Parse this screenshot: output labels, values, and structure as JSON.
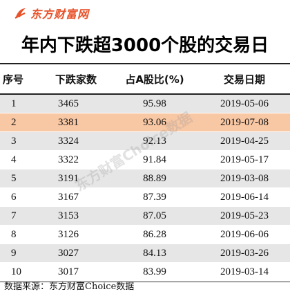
{
  "logo": {
    "text": "东方财富网",
    "color": "#e8522a"
  },
  "title": "年内下跌超3000个股的交易日",
  "table": {
    "headers": [
      "序号",
      "下跌家数",
      "占A股比(%)",
      "交易日期"
    ],
    "rows": [
      {
        "idx": "1",
        "count": "3465",
        "pct": "95.98",
        "date": "2019-05-06"
      },
      {
        "idx": "2",
        "count": "3381",
        "pct": "93.06",
        "date": "2019-07-08"
      },
      {
        "idx": "3",
        "count": "3324",
        "pct": "92.13",
        "date": "2019-04-25"
      },
      {
        "idx": "4",
        "count": "3322",
        "pct": "91.84",
        "date": "2019-05-17"
      },
      {
        "idx": "5",
        "count": "3191",
        "pct": "88.89",
        "date": "2019-03-08"
      },
      {
        "idx": "6",
        "count": "3167",
        "pct": "87.39",
        "date": "2019-06-14"
      },
      {
        "idx": "7",
        "count": "3153",
        "pct": "87.05",
        "date": "2019-05-23"
      },
      {
        "idx": "8",
        "count": "3126",
        "pct": "86.28",
        "date": "2019-06-06"
      },
      {
        "idx": "9",
        "count": "3027",
        "pct": "84.13",
        "date": "2019-03-26"
      },
      {
        "idx": "10",
        "count": "3017",
        "pct": "83.99",
        "date": "2019-03-14"
      }
    ],
    "highlight_row": "2",
    "highlight_color": "#f8c7a4",
    "stripe_color": "#e6e6e6"
  },
  "watermark": "东方财富Choice数据",
  "source": "数据来源：东方财富Choice数据"
}
